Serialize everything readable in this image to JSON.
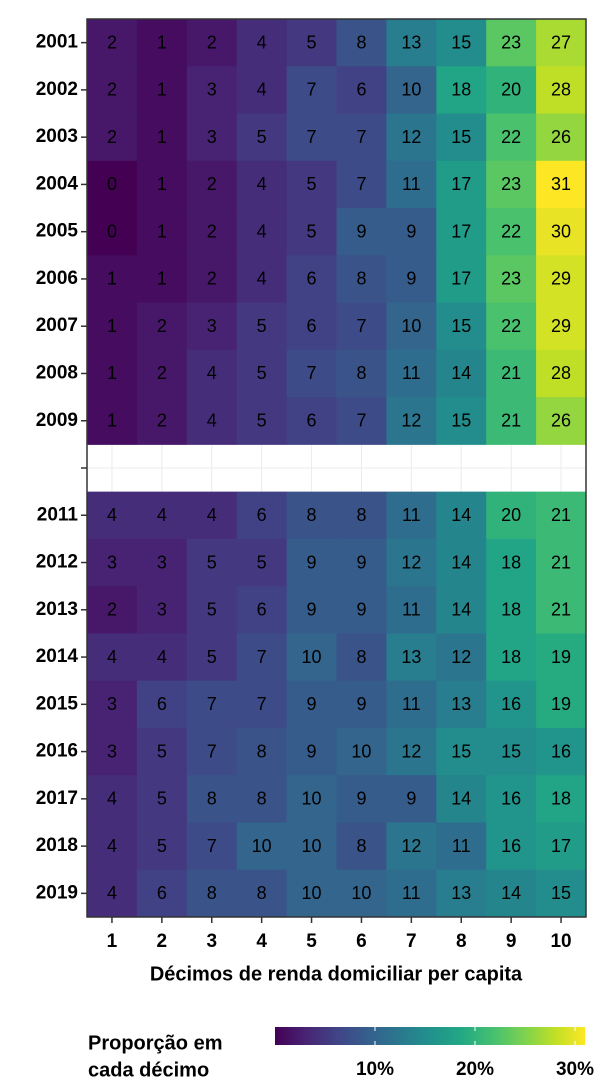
{
  "chart_data": {
    "type": "heatmap",
    "xlabel": "Décimos de renda domiciliar per capita",
    "categories": [
      "1",
      "2",
      "3",
      "4",
      "5",
      "6",
      "7",
      "8",
      "9",
      "10"
    ],
    "rows": [
      {
        "label": "2001",
        "values": [
          2,
          1,
          2,
          4,
          5,
          8,
          13,
          15,
          23,
          27
        ]
      },
      {
        "label": "2002",
        "values": [
          2,
          1,
          3,
          4,
          7,
          6,
          10,
          18,
          20,
          28
        ]
      },
      {
        "label": "2003",
        "values": [
          2,
          1,
          3,
          5,
          7,
          7,
          12,
          15,
          22,
          26
        ]
      },
      {
        "label": "2004",
        "values": [
          0,
          1,
          2,
          4,
          5,
          7,
          11,
          17,
          23,
          31
        ]
      },
      {
        "label": "2005",
        "values": [
          0,
          1,
          2,
          4,
          5,
          9,
          9,
          17,
          22,
          30
        ]
      },
      {
        "label": "2006",
        "values": [
          1,
          1,
          2,
          4,
          6,
          8,
          9,
          17,
          23,
          29
        ]
      },
      {
        "label": "2007",
        "values": [
          1,
          2,
          3,
          5,
          6,
          7,
          10,
          15,
          22,
          29
        ]
      },
      {
        "label": "2008",
        "values": [
          1,
          2,
          4,
          5,
          7,
          8,
          11,
          14,
          21,
          28
        ]
      },
      {
        "label": "2009",
        "values": [
          1,
          2,
          4,
          5,
          6,
          7,
          12,
          15,
          21,
          26
        ]
      },
      {
        "label": null,
        "values": [
          null,
          null,
          null,
          null,
          null,
          null,
          null,
          null,
          null,
          null
        ]
      },
      {
        "label": "2011",
        "values": [
          4,
          4,
          4,
          6,
          8,
          8,
          11,
          14,
          20,
          21
        ]
      },
      {
        "label": "2012",
        "values": [
          3,
          3,
          5,
          5,
          9,
          9,
          12,
          14,
          18,
          21
        ]
      },
      {
        "label": "2013",
        "values": [
          2,
          3,
          5,
          6,
          9,
          9,
          11,
          14,
          18,
          21
        ]
      },
      {
        "label": "2014",
        "values": [
          4,
          4,
          5,
          7,
          10,
          8,
          13,
          12,
          18,
          19
        ]
      },
      {
        "label": "2015",
        "values": [
          3,
          6,
          7,
          7,
          9,
          9,
          11,
          13,
          16,
          19
        ]
      },
      {
        "label": "2016",
        "values": [
          3,
          5,
          7,
          8,
          9,
          10,
          12,
          15,
          15,
          16
        ]
      },
      {
        "label": "2017",
        "values": [
          4,
          5,
          8,
          8,
          10,
          9,
          9,
          14,
          16,
          18
        ]
      },
      {
        "label": "2018",
        "values": [
          4,
          5,
          7,
          10,
          10,
          8,
          12,
          11,
          16,
          17
        ]
      },
      {
        "label": "2019",
        "values": [
          4,
          6,
          8,
          8,
          10,
          10,
          11,
          13,
          14,
          15
        ]
      }
    ],
    "legend_title": [
      "Proporção em",
      "cada décimo"
    ],
    "clim": [
      0,
      31
    ],
    "cticks": [
      {
        "value": 10,
        "label": "10%"
      },
      {
        "value": 20,
        "label": "20%"
      },
      {
        "value": 30,
        "label": "30%"
      }
    ],
    "colorscale": [
      "#440154",
      "#482475",
      "#414487",
      "#355f8d",
      "#2a788e",
      "#21918c",
      "#22a884",
      "#44bf70",
      "#7ad151",
      "#bddf26",
      "#fde725"
    ],
    "grid": true
  }
}
